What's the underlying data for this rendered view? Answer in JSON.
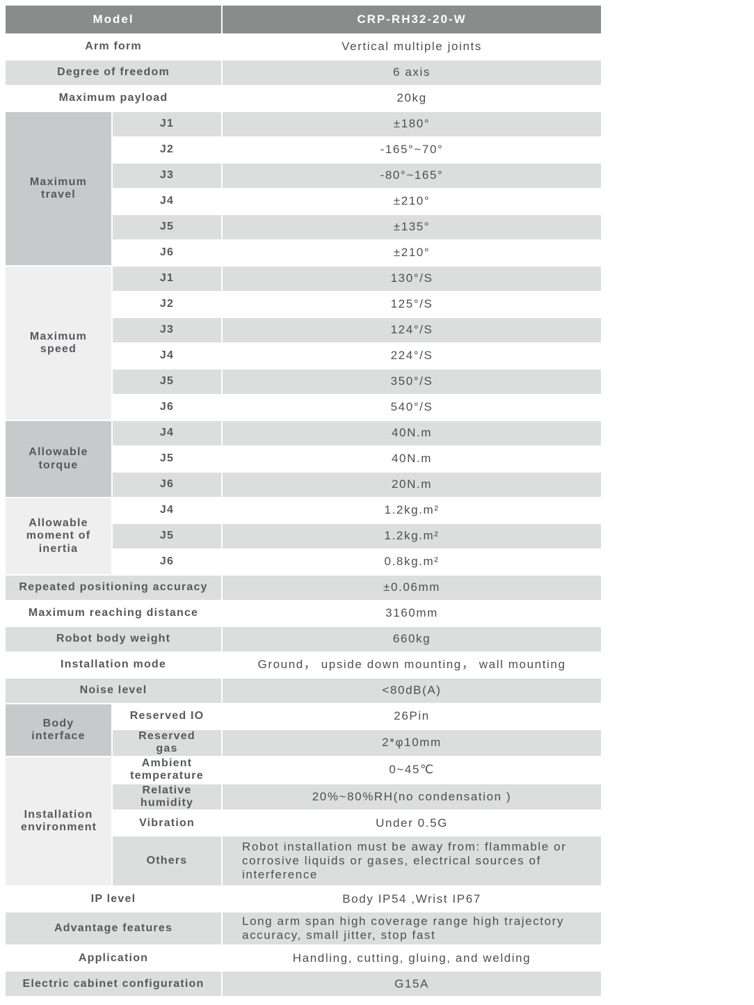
{
  "colors": {
    "header_bg": "#8a8b8b",
    "header_text": "#ffffff",
    "row_gray": "#dcdddd",
    "row_white": "#ffffff",
    "section_dark": "#c8c9ca",
    "section_light": "#efeff0",
    "label_text": "#57585a",
    "value_text": "#4d4e50"
  },
  "table": {
    "header": {
      "label": "Model",
      "value": "CRP-RH32-20-W"
    },
    "rows_top": [
      {
        "label": "Arm form",
        "value": "Vertical multiple joints"
      },
      {
        "label": "Degree of freedom",
        "value": "6 axis"
      },
      {
        "label": "Maximum payload",
        "value": "20kg"
      }
    ],
    "travel": {
      "label": "Maximum travel",
      "joints": [
        {
          "j": "J1",
          "v": "±180°"
        },
        {
          "j": "J2",
          "v": "-165°~70°"
        },
        {
          "j": "J3",
          "v": "-80°~165°"
        },
        {
          "j": "J4",
          "v": "±210°"
        },
        {
          "j": "J5",
          "v": "±135°"
        },
        {
          "j": "J6",
          "v": "±210°"
        }
      ]
    },
    "speed": {
      "label": "Maximum speed",
      "joints": [
        {
          "j": "J1",
          "v": "130°/S"
        },
        {
          "j": "J2",
          "v": "125°/S"
        },
        {
          "j": "J3",
          "v": "124°/S"
        },
        {
          "j": "J4",
          "v": "224°/S"
        },
        {
          "j": "J5",
          "v": "350°/S"
        },
        {
          "j": "J6",
          "v": "540°/S"
        }
      ]
    },
    "torque": {
      "label": "Allowable torque",
      "joints": [
        {
          "j": "J4",
          "v": "40N.m"
        },
        {
          "j": "J5",
          "v": "40N.m"
        },
        {
          "j": "J6",
          "v": "20N.m"
        }
      ]
    },
    "inertia": {
      "label": "Allowable moment of inertia",
      "joints": [
        {
          "j": "J4",
          "v": "1.2kg.m²"
        },
        {
          "j": "J5",
          "v": "1.2kg.m²"
        },
        {
          "j": "J6",
          "v": "0.8kg.m²"
        }
      ]
    },
    "rows_mid": [
      {
        "label": "Repeated positioning accuracy",
        "value": "±0.06mm"
      },
      {
        "label": "Maximum reaching distance",
        "value": "3160mm"
      },
      {
        "label": "Robot body weight",
        "value": "660kg"
      },
      {
        "label": "Installation mode",
        "value": "Ground， upside down mounting， wall mounting"
      },
      {
        "label": "Noise level",
        "value": "<80dB(A)"
      }
    ],
    "body_interface": {
      "label": "Body interface",
      "rows": [
        {
          "sub": "Reserved IO",
          "v": "26Pin"
        },
        {
          "sub": "Reserved gas",
          "v": "2*φ10mm"
        }
      ]
    },
    "environment": {
      "label": "Installation environment",
      "rows": [
        {
          "sub": "Ambient temperature",
          "v": "0~45℃"
        },
        {
          "sub": "Relative humidity",
          "v": "20%~80%RH(no condensation )"
        },
        {
          "sub": "Vibration",
          "v": "Under 0.5G"
        },
        {
          "sub": "Others",
          "v": "Robot installation must be away from: flammable or corrosive liquids or gases, electrical sources of interference"
        }
      ]
    },
    "rows_bottom": [
      {
        "label": "IP level",
        "value": "Body IP54 ,Wrist IP67"
      },
      {
        "label": "Advantage features",
        "value": "Long arm span high coverage range  high trajectory accuracy, small jitter, stop fast"
      },
      {
        "label": "Application",
        "value": "Handling, cutting, gluing, and welding"
      },
      {
        "label": "Electric cabinet configuration",
        "value": "G15A"
      }
    ]
  }
}
